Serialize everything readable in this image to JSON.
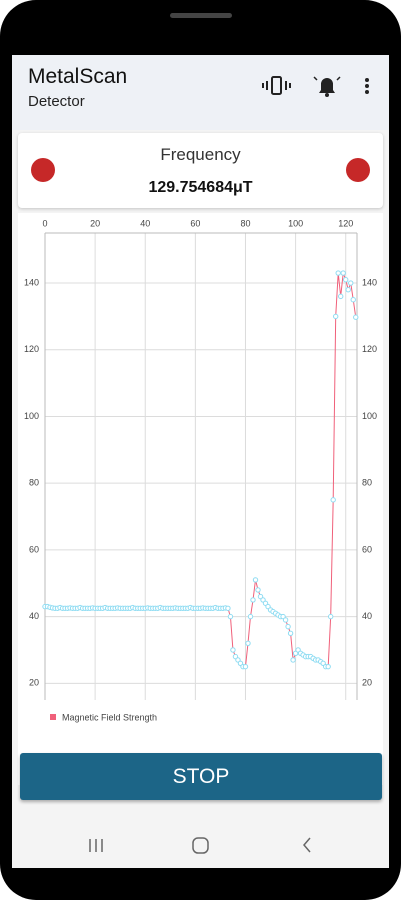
{
  "app_bar": {
    "title": "MetalScan",
    "subtitle": "Detector"
  },
  "card": {
    "label": "Frequency",
    "value": "129.754684μT"
  },
  "button": {
    "label": "STOP"
  },
  "chart_data": {
    "type": "line",
    "x": [
      0,
      1,
      2,
      3,
      4,
      5,
      6,
      7,
      8,
      9,
      10,
      11,
      12,
      13,
      14,
      15,
      16,
      17,
      18,
      19,
      20,
      21,
      22,
      23,
      24,
      25,
      26,
      27,
      28,
      29,
      30,
      31,
      32,
      33,
      34,
      35,
      36,
      37,
      38,
      39,
      40,
      41,
      42,
      43,
      44,
      45,
      46,
      47,
      48,
      49,
      50,
      51,
      52,
      53,
      54,
      55,
      56,
      57,
      58,
      59,
      60,
      61,
      62,
      63,
      64,
      65,
      66,
      67,
      68,
      69,
      70,
      71,
      72,
      73,
      74,
      75,
      76,
      77,
      78,
      79,
      80,
      81,
      82,
      83,
      84,
      85,
      86,
      87,
      88,
      89,
      90,
      91,
      92,
      93,
      94,
      95,
      96,
      97,
      98,
      99,
      100,
      101,
      102,
      103,
      104,
      105,
      106,
      107,
      108,
      109,
      110,
      111,
      112,
      113,
      114,
      115,
      116,
      117,
      118,
      119,
      120,
      121,
      122,
      123,
      124
    ],
    "series": [
      {
        "name": "Magnetic Field Strength",
        "color": "#f0607a",
        "marker_color": "#8fdcf2",
        "values": [
          43,
          43,
          42.8,
          42.6,
          42.5,
          42.5,
          42.7,
          42.5,
          42.5,
          42.5,
          42.6,
          42.5,
          42.5,
          42.5,
          42.7,
          42.5,
          42.5,
          42.5,
          42.5,
          42.6,
          42.5,
          42.5,
          42.5,
          42.5,
          42.7,
          42.5,
          42.5,
          42.5,
          42.5,
          42.6,
          42.5,
          42.5,
          42.5,
          42.5,
          42.5,
          42.7,
          42.5,
          42.5,
          42.5,
          42.5,
          42.5,
          42.6,
          42.5,
          42.5,
          42.5,
          42.5,
          42.7,
          42.5,
          42.5,
          42.5,
          42.5,
          42.5,
          42.6,
          42.5,
          42.5,
          42.5,
          42.5,
          42.5,
          42.7,
          42.5,
          42.5,
          42.5,
          42.5,
          42.6,
          42.5,
          42.5,
          42.5,
          42.5,
          42.7,
          42.5,
          42.5,
          42.5,
          42.6,
          42.5,
          40,
          30,
          28,
          27,
          26,
          25,
          25,
          32,
          40,
          45,
          51,
          48,
          46,
          45,
          44,
          43,
          42,
          41.5,
          41,
          40.5,
          40,
          40,
          39,
          37,
          35,
          27,
          29,
          30,
          29,
          28.5,
          28,
          28,
          28,
          27.5,
          27,
          27,
          26.5,
          26,
          25,
          25,
          40,
          75,
          130,
          143,
          136,
          143,
          141,
          138,
          140,
          135,
          129.75
        ]
      }
    ],
    "xlim": [
      0,
      124.5
    ],
    "xticks": [
      0,
      20,
      40,
      60,
      80,
      100,
      120
    ],
    "ylim": [
      15,
      155
    ],
    "yticks": [
      20,
      40,
      60,
      80,
      100,
      120,
      140
    ],
    "grid": true
  }
}
